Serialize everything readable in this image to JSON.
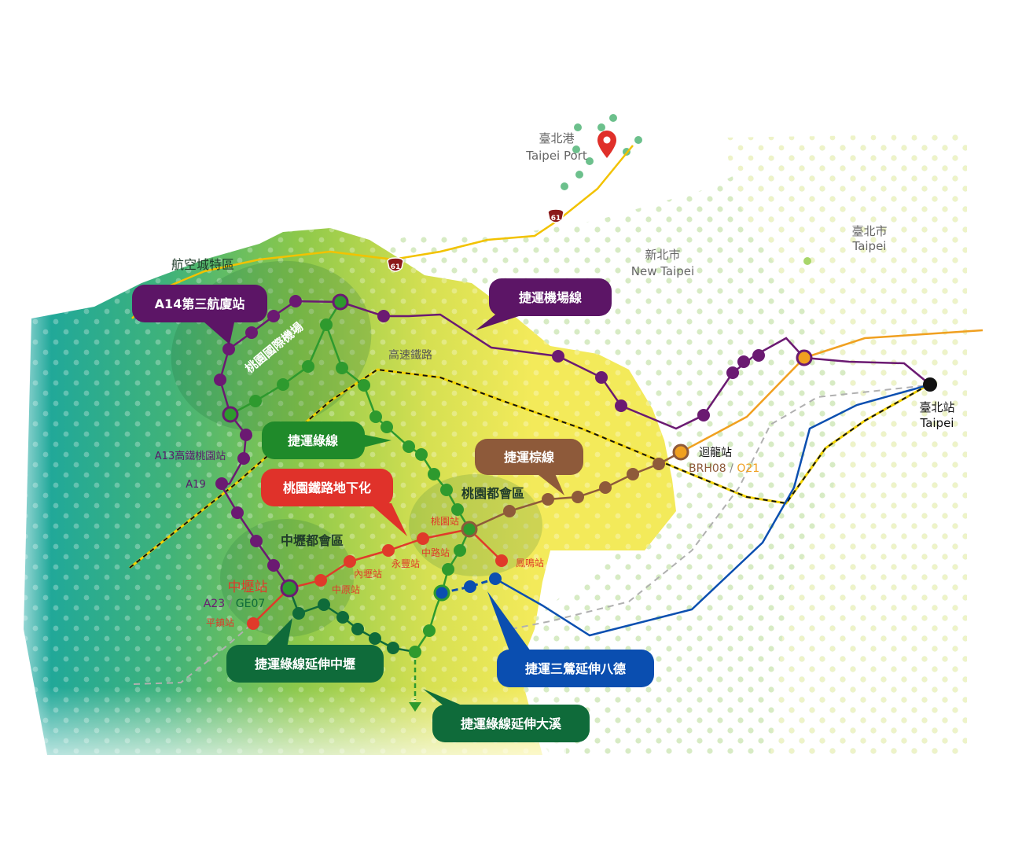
{
  "places": {
    "port_zh": "臺北港",
    "port_en": "Taipei Port",
    "new_taipei_zh": "新北市",
    "new_taipei_en": "New Taipei",
    "taipei_city_zh": "臺北市",
    "taipei_city_en": "Taipei",
    "aerotropolis": "航空城特區",
    "airport": "桃園國際機場",
    "hsr": "高速鐵路",
    "taoyuan_metro": "桃園都會區",
    "zhongli_metro": "中壢都會區"
  },
  "stations": {
    "taipei_zh": "臺北站",
    "taipei_en": "Taipei",
    "huilong": "迴龍站",
    "huilong_code_a": "BRH08",
    "huilong_code_sep": " / ",
    "huilong_code_b": "O21",
    "a13": "A13高鐵桃園站",
    "a19": "A19",
    "zhongli": "中壢站",
    "a23_a": "A23",
    "a23_sep": " / ",
    "a23_b": "GE07",
    "pingzhen": "平鎮站",
    "zhongyuan": "中原站",
    "neili": "內壢站",
    "yongfeng": "永豐站",
    "zhonglu": "中路站",
    "taoyuan": "桃園站",
    "fengming": "鳳鳴站"
  },
  "callouts": {
    "a14": "A14第三航廈站",
    "airport_line": "捷運機場線",
    "green_line": "捷運綠線",
    "brown_line": "捷運棕線",
    "rail_underground": "桃園鐵路地下化",
    "green_ext_zhongli": "捷運綠線延伸中壢",
    "green_ext_daxi": "捷運綠線延伸大溪",
    "sanying_ext": "捷運三鶯延伸八德"
  },
  "highway_number": "61",
  "colors": {
    "airport_line": "#6b1a72",
    "green_line": "#2e9a2e",
    "brown_line": "#8e5a3a",
    "red_line": "#e03a2a",
    "blue_line": "#0b4fb0",
    "orange_line": "#f0a020",
    "highway": "#f2c200",
    "green_callout": "#1f8a2a",
    "dark_green_callout": "#0f6b3a",
    "red_callout": "#e0322a",
    "brown_callout": "#8e5a3a",
    "blue_callout": "#0a4eb0",
    "purple_callout": "#5c1566",
    "port_pin": "#e0302a"
  },
  "icons": [
    "location-pin-icon",
    "highway-shield-icon",
    "arrow-down-icon"
  ]
}
